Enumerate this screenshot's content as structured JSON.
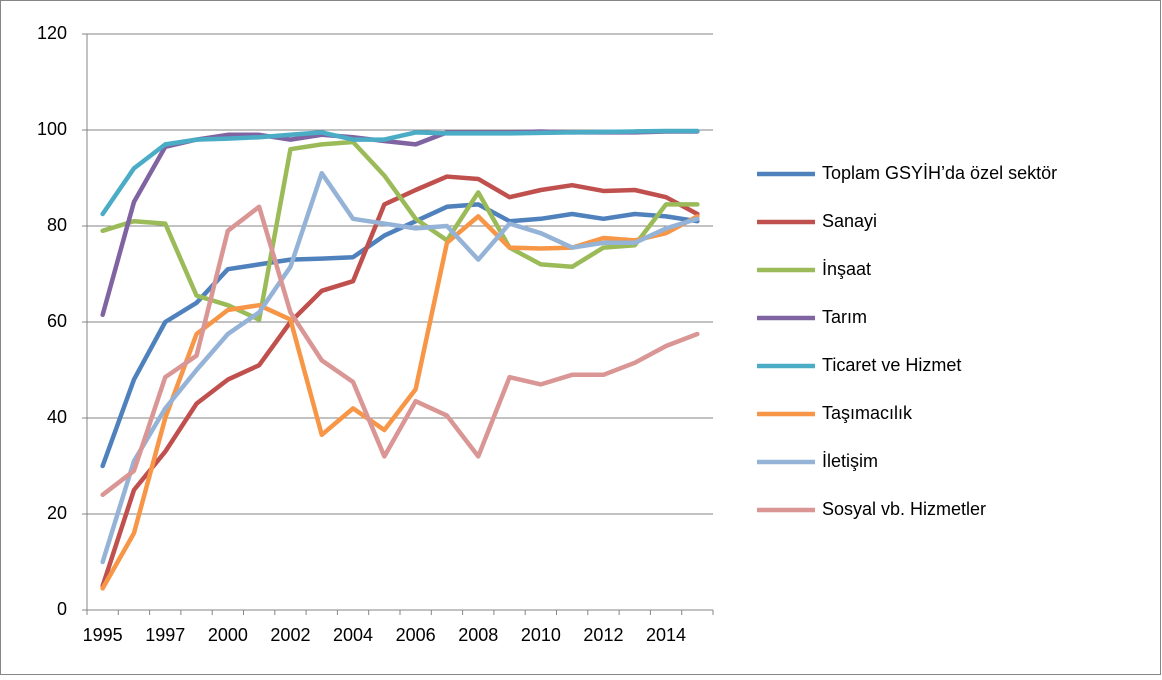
{
  "chart_data": {
    "type": "line",
    "categories": [
      "1995",
      null,
      "1997",
      null,
      "2000",
      null,
      "2002",
      null,
      "2004",
      null,
      "2006",
      null,
      "2008",
      null,
      "2010",
      null,
      "2012",
      null,
      "2014",
      null
    ],
    "ylim": [
      0,
      120
    ],
    "yticks": [
      0,
      20,
      40,
      60,
      80,
      100,
      120
    ],
    "grid": true,
    "legend": "right",
    "series": [
      {
        "name": "Toplam GSYİH’da özel sektör",
        "color": "#4F81BD",
        "values": [
          30,
          48,
          60,
          64,
          71,
          72,
          73,
          73.2,
          73.5,
          78,
          81,
          84,
          84.5,
          81,
          81.5,
          82.5,
          81.5,
          82.5,
          82,
          81
        ]
      },
      {
        "name": "Sanayi",
        "color": "#C0504D",
        "values": [
          5,
          25,
          33,
          43,
          48,
          51,
          60,
          66.5,
          68.5,
          84.5,
          87.5,
          90.3,
          89.8,
          86,
          87.5,
          88.5,
          87.3,
          87.5,
          86,
          82.5
        ]
      },
      {
        "name": "İnşaat",
        "color": "#9BBB59",
        "values": [
          79,
          81,
          80.5,
          65.5,
          63.5,
          60.5,
          96,
          97,
          97.5,
          90.5,
          81.5,
          77,
          87,
          75.5,
          72,
          71.5,
          75.5,
          76,
          84.5,
          84.5
        ]
      },
      {
        "name": "Tarım",
        "color": "#8064A2",
        "values": [
          61.5,
          85,
          96.5,
          98,
          99,
          99,
          98,
          99,
          98.5,
          97.7,
          97,
          99.5,
          99.5,
          99.5,
          99.7,
          99.5,
          99.5,
          99.5,
          99.7,
          99.7
        ]
      },
      {
        "name": "Ticaret ve Hizmet",
        "color": "#4BACC6",
        "values": [
          82.5,
          92,
          97,
          98,
          98.2,
          98.5,
          99,
          99.5,
          98,
          98,
          99.5,
          99.3,
          99.3,
          99.3,
          99.4,
          99.5,
          99.6,
          99.7,
          99.8,
          99.8
        ]
      },
      {
        "name": "Taşımacılık",
        "color": "#F79646",
        "values": [
          4.5,
          16,
          40,
          57.5,
          62.5,
          63.5,
          60.5,
          36.5,
          42,
          37.5,
          46,
          76.5,
          82,
          75.5,
          75.3,
          75.5,
          77.5,
          77,
          78.5,
          82
        ]
      },
      {
        "name": "İletişim",
        "color": "#95B3D7",
        "values": [
          10,
          31,
          42,
          50,
          57.5,
          62,
          71.5,
          91,
          81.5,
          80.5,
          79.5,
          80,
          73,
          80.5,
          78.5,
          75.5,
          76.5,
          76.5,
          79.5,
          81.5
        ]
      },
      {
        "name": "Sosyal vb. Hizmetler",
        "color": "#D99694",
        "values": [
          24,
          29,
          48.5,
          53,
          79,
          84,
          62,
          52,
          47.5,
          32,
          43.5,
          40.5,
          32,
          48.5,
          47,
          49,
          49,
          51.5,
          55,
          57.5
        ]
      }
    ]
  }
}
